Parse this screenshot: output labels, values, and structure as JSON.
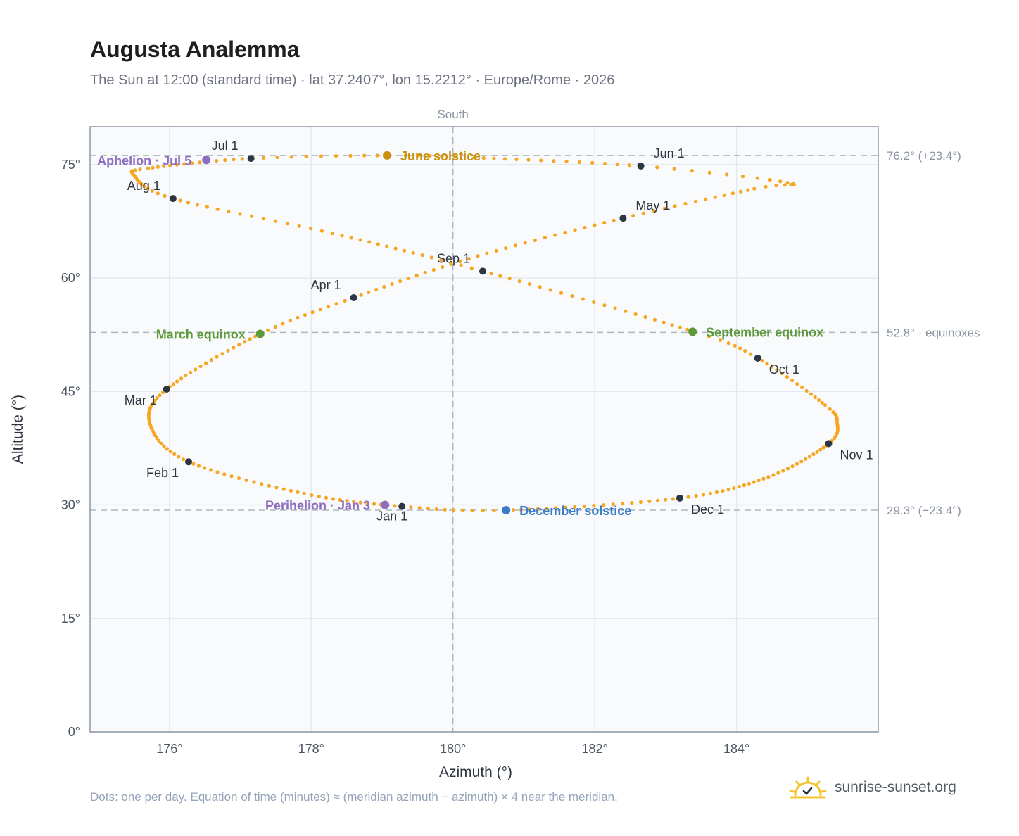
{
  "header": {
    "title": "Augusta Analemma",
    "subtitle": "The Sun at 12:00 (standard time) · lat 37.2407°, lon 15.2212° · Europe/Rome · 2026"
  },
  "footer": {
    "note": "Dots: one per day. Equation of time (minutes) ≈ (meridian azimuth − azimuth) × 4 near the meridian.",
    "brand": "sunrise-sunset.org",
    "brand_icon": "sun-logo-icon"
  },
  "chart_data": {
    "type": "scatter",
    "xlabel": "Azimuth (°)",
    "ylabel": "Altitude (°)",
    "xlim": [
      174.88,
      186.0
    ],
    "ylim": [
      0,
      80
    ],
    "x_ticks": [
      176,
      178,
      180,
      182,
      184
    ],
    "x_tick_labels": [
      "176°",
      "178°",
      "180°",
      "182°",
      "184°"
    ],
    "y_ticks": [
      0,
      15,
      30,
      45,
      60,
      75
    ],
    "y_tick_labels": [
      "0°",
      "15°",
      "30°",
      "45°",
      "60°",
      "75°"
    ],
    "grid": true,
    "meridian": {
      "azimuth": 180,
      "label": "South"
    },
    "reference_lines": [
      {
        "altitude": 76.2,
        "label": "76.2° (+23.4°)"
      },
      {
        "altitude": 52.8,
        "label": "52.8° · equinoxes"
      },
      {
        "altitude": 29.3,
        "label": "29.3° (−23.4°)"
      }
    ],
    "curve_color": "#f5a623",
    "month_marker_color": "#2d3540",
    "daily_anchors": [
      {
        "day": 1,
        "az": 179.28,
        "alt": 29.8
      },
      {
        "day": 15,
        "az": 177.9,
        "alt": 31.5
      },
      {
        "day": 32,
        "az": 176.27,
        "alt": 35.7
      },
      {
        "day": 46,
        "az": 175.73,
        "alt": 40.6
      },
      {
        "day": 60,
        "az": 175.96,
        "alt": 45.3
      },
      {
        "day": 79,
        "az": 177.28,
        "alt": 52.6
      },
      {
        "day": 91,
        "az": 178.6,
        "alt": 57.4
      },
      {
        "day": 106,
        "az": 180.35,
        "alt": 62.9
      },
      {
        "day": 121,
        "az": 182.4,
        "alt": 67.9
      },
      {
        "day": 135,
        "az": 184.25,
        "alt": 71.8
      },
      {
        "day": 142,
        "az": 184.72,
        "alt": 72.6
      },
      {
        "day": 152,
        "az": 182.65,
        "alt": 74.8
      },
      {
        "day": 166,
        "az": 180.3,
        "alt": 75.9
      },
      {
        "day": 172,
        "az": 179.1,
        "alt": 76.2
      },
      {
        "day": 182,
        "az": 177.15,
        "alt": 75.8
      },
      {
        "day": 196,
        "az": 175.7,
        "alt": 74.5
      },
      {
        "day": 202,
        "az": 175.5,
        "alt": 73.6
      },
      {
        "day": 213,
        "az": 176.05,
        "alt": 70.5
      },
      {
        "day": 228,
        "az": 178.3,
        "alt": 65.9
      },
      {
        "day": 244,
        "az": 180.42,
        "alt": 60.9
      },
      {
        "day": 266,
        "az": 183.4,
        "alt": 52.9
      },
      {
        "day": 274,
        "az": 184.3,
        "alt": 49.4
      },
      {
        "day": 289,
        "az": 185.25,
        "alt": 43.2
      },
      {
        "day": 296,
        "az": 185.42,
        "alt": 40.9
      },
      {
        "day": 305,
        "az": 185.3,
        "alt": 38.1
      },
      {
        "day": 320,
        "az": 184.45,
        "alt": 33.7
      },
      {
        "day": 335,
        "az": 183.2,
        "alt": 30.9
      },
      {
        "day": 355,
        "az": 180.75,
        "alt": 29.3
      },
      {
        "day": 366,
        "az": 179.28,
        "alt": 29.8
      }
    ],
    "month_markers": [
      {
        "label": "Jan 1",
        "az": 179.28,
        "alt": 29.8,
        "label_pos": "below"
      },
      {
        "label": "Feb 1",
        "az": 176.27,
        "alt": 35.7,
        "label_pos": "below-left"
      },
      {
        "label": "Mar 1",
        "az": 175.96,
        "alt": 45.3,
        "label_pos": "below-left"
      },
      {
        "label": "Apr 1",
        "az": 178.6,
        "alt": 57.4,
        "label_pos": "above-left"
      },
      {
        "label": "May 1",
        "az": 182.4,
        "alt": 67.9,
        "label_pos": "above-right"
      },
      {
        "label": "Jun 1",
        "az": 182.65,
        "alt": 74.8,
        "label_pos": "above-right"
      },
      {
        "label": "Jul 1",
        "az": 177.15,
        "alt": 75.8,
        "label_pos": "above-left"
      },
      {
        "label": "Aug 1",
        "az": 176.05,
        "alt": 70.5,
        "label_pos": "above-left"
      },
      {
        "label": "Sep 1",
        "az": 180.42,
        "alt": 60.9,
        "label_pos": "above-left"
      },
      {
        "label": "Oct 1",
        "az": 184.3,
        "alt": 49.4,
        "label_pos": "below-right"
      },
      {
        "label": "Nov 1",
        "az": 185.3,
        "alt": 38.1,
        "label_pos": "below-right"
      },
      {
        "label": "Dec 1",
        "az": 183.2,
        "alt": 30.9,
        "label_pos": "below-right"
      }
    ],
    "events": [
      {
        "label": "June solstice",
        "az": 179.07,
        "alt": 76.2,
        "color": "#c9900a",
        "label_side": "right"
      },
      {
        "label": "December solstice",
        "az": 180.75,
        "alt": 29.3,
        "color": "#3a7bc8",
        "label_side": "right"
      },
      {
        "label": "March equinox",
        "az": 177.28,
        "alt": 52.6,
        "color": "#5c9a3a",
        "label_side": "left"
      },
      {
        "label": "September equinox",
        "az": 183.38,
        "alt": 52.9,
        "color": "#5c9a3a",
        "label_side": "right"
      },
      {
        "label": "Aphelion · Jul 5",
        "az": 176.52,
        "alt": 75.6,
        "color": "#8e6cbf",
        "label_side": "left"
      },
      {
        "label": "Perihelion · Jan 3",
        "az": 179.04,
        "alt": 30.0,
        "color": "#8e6cbf",
        "label_side": "left"
      }
    ]
  }
}
